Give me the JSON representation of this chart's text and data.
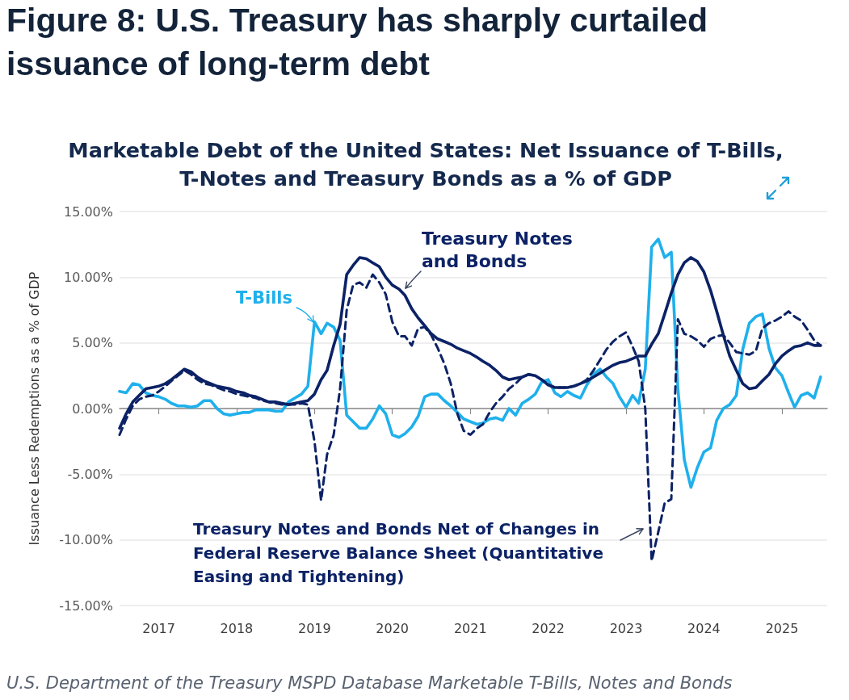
{
  "chart_data": {
    "type": "line",
    "title": "Figure 8: U.S. Treasury has sharply curtailed issuance of long-term debt",
    "subtitle": "Marketable Debt of the United States: Net Issuance of T-Bills, T-Notes and Treasury Bonds as a % of GDP",
    "ylabel": "Issuance Less Redemptions as a % of GDP",
    "annotations": [
      "U.S. Department of the Treasury MSPD Database Marketable T-Bills, Notes and Bonds"
    ],
    "x": [
      "2016-07",
      "2016-08",
      "2016-09",
      "2016-10",
      "2016-11",
      "2016-12",
      "2017-01",
      "2017-02",
      "2017-03",
      "2017-04",
      "2017-05",
      "2017-06",
      "2017-07",
      "2017-08",
      "2017-09",
      "2017-10",
      "2017-11",
      "2017-12",
      "2018-01",
      "2018-02",
      "2018-03",
      "2018-04",
      "2018-05",
      "2018-06",
      "2018-07",
      "2018-08",
      "2018-09",
      "2018-10",
      "2018-11",
      "2018-12",
      "2019-01",
      "2019-02",
      "2019-03",
      "2019-04",
      "2019-05",
      "2019-06",
      "2019-07",
      "2019-08",
      "2019-09",
      "2019-10",
      "2019-11",
      "2019-12",
      "2020-01",
      "2020-02",
      "2020-03",
      "2020-04",
      "2020-05",
      "2020-06",
      "2020-07",
      "2020-08",
      "2020-09",
      "2020-10",
      "2020-11",
      "2020-12",
      "2021-01",
      "2021-02",
      "2021-03",
      "2021-04",
      "2021-05",
      "2021-06",
      "2021-07",
      "2021-08",
      "2021-09",
      "2021-10",
      "2021-11",
      "2021-12",
      "2022-01",
      "2022-02",
      "2022-03",
      "2022-04",
      "2022-05",
      "2022-06",
      "2022-07",
      "2022-08",
      "2022-09",
      "2022-10",
      "2022-11",
      "2022-12",
      "2023-01",
      "2023-02",
      "2023-03",
      "2023-04",
      "2023-05",
      "2023-06",
      "2023-07",
      "2023-08",
      "2023-09",
      "2023-10",
      "2023-11",
      "2023-12",
      "2024-01",
      "2024-02",
      "2024-03",
      "2024-04",
      "2024-05",
      "2024-06",
      "2024-07",
      "2024-08",
      "2024-09",
      "2024-10",
      "2024-11",
      "2024-12",
      "2025-01",
      "2025-02",
      "2025-03",
      "2025-04",
      "2025-05",
      "2025-06",
      "2025-07"
    ],
    "series": [
      {
        "name": "T-Bills",
        "color": "#1fb0ec",
        "line_style": "solid",
        "values": [
          1.3,
          1.2,
          1.9,
          1.8,
          1.2,
          1.0,
          0.9,
          0.7,
          0.4,
          0.2,
          0.2,
          0.1,
          0.2,
          0.6,
          0.6,
          0.0,
          -0.4,
          -0.5,
          -0.4,
          -0.3,
          -0.3,
          -0.1,
          -0.1,
          -0.1,
          -0.2,
          -0.2,
          0.5,
          0.8,
          1.1,
          1.7,
          6.6,
          5.7,
          6.5,
          6.2,
          5.2,
          -0.5,
          -1.0,
          -1.5,
          -1.5,
          -0.8,
          0.2,
          -0.4,
          -2.0,
          -2.2,
          -1.9,
          -1.4,
          -0.6,
          0.9,
          1.1,
          1.1,
          0.6,
          0.2,
          -0.3,
          -0.8,
          -1.0,
          -1.2,
          -1.1,
          -0.8,
          -0.7,
          -0.9,
          0.0,
          -0.5,
          0.4,
          0.7,
          1.1,
          2.0,
          2.2,
          1.2,
          0.9,
          1.3,
          1.0,
          0.8,
          1.8,
          2.6,
          3.0,
          2.4,
          1.9,
          0.9,
          0.1,
          1.0,
          0.4,
          3.0,
          12.3,
          12.9,
          11.5,
          11.9,
          1.5,
          -3.9,
          -6.0,
          -4.5,
          -3.3,
          -3.0,
          -0.9,
          0.0,
          0.3,
          1.0,
          4.5,
          6.5,
          7.0,
          7.2,
          4.6,
          3.1,
          2.5,
          1.2,
          0.1,
          1.0,
          1.2,
          0.8,
          2.4
        ]
      },
      {
        "name": "Treasury Notes and Bonds",
        "color": "#0c2266",
        "line_style": "solid",
        "values": [
          -1.5,
          -0.4,
          0.5,
          1.0,
          1.5,
          1.6,
          1.7,
          1.9,
          2.2,
          2.6,
          3.0,
          2.8,
          2.4,
          2.1,
          1.9,
          1.7,
          1.6,
          1.5,
          1.3,
          1.2,
          1.0,
          0.9,
          0.7,
          0.5,
          0.5,
          0.4,
          0.3,
          0.4,
          0.5,
          0.6,
          1.1,
          2.2,
          2.9,
          4.8,
          6.4,
          10.2,
          10.9,
          11.5,
          11.4,
          11.1,
          10.8,
          10.0,
          9.4,
          9.1,
          8.6,
          7.6,
          6.9,
          6.3,
          5.7,
          5.3,
          5.1,
          4.9,
          4.6,
          4.4,
          4.2,
          3.9,
          3.6,
          3.3,
          2.9,
          2.4,
          2.2,
          2.3,
          2.4,
          2.6,
          2.5,
          2.2,
          1.8,
          1.6,
          1.6,
          1.6,
          1.7,
          1.9,
          2.1,
          2.4,
          2.7,
          3.0,
          3.3,
          3.5,
          3.6,
          3.8,
          4.0,
          4.0,
          4.9,
          5.7,
          7.2,
          8.8,
          10.2,
          11.1,
          11.5,
          11.2,
          10.4,
          9.0,
          7.4,
          5.6,
          4.0,
          2.9,
          1.9,
          1.5,
          1.6,
          2.1,
          2.6,
          3.4,
          4.0,
          4.4,
          4.7,
          4.8,
          5.0,
          4.8,
          4.8
        ]
      },
      {
        "name": "Treasury Notes and Bonds Net of Changes in Federal Reserve Balance Sheet (Quantitative Easing and Tightening)",
        "color": "#0c2266",
        "line_style": "dashed",
        "values": [
          -2.0,
          -0.8,
          0.2,
          0.7,
          0.9,
          1.0,
          1.3,
          1.7,
          2.1,
          2.5,
          2.9,
          2.6,
          2.2,
          1.9,
          1.8,
          1.6,
          1.4,
          1.3,
          1.1,
          1.0,
          0.9,
          0.8,
          0.6,
          0.5,
          0.4,
          0.3,
          0.3,
          0.3,
          0.4,
          0.3,
          -2.5,
          -7.0,
          -3.5,
          -2.0,
          1.5,
          7.5,
          9.4,
          9.6,
          9.2,
          10.2,
          9.6,
          8.7,
          6.6,
          5.5,
          5.5,
          4.8,
          6.1,
          6.2,
          5.6,
          4.6,
          3.4,
          1.9,
          -0.4,
          -1.7,
          -2.0,
          -1.5,
          -1.2,
          -0.3,
          0.4,
          0.9,
          1.5,
          1.9,
          2.4,
          2.6,
          2.5,
          2.2,
          1.8,
          1.6,
          1.6,
          1.6,
          1.7,
          1.9,
          2.2,
          2.9,
          3.7,
          4.5,
          5.1,
          5.5,
          5.8,
          4.7,
          3.6,
          0.0,
          -11.6,
          -9.4,
          -7.2,
          -6.9,
          6.8,
          5.7,
          5.5,
          5.2,
          4.7,
          5.3,
          5.5,
          5.6,
          5.0,
          4.3,
          4.2,
          4.1,
          4.4,
          6.1,
          6.5,
          6.7,
          7.0,
          7.4,
          7.0,
          6.7,
          6.0,
          5.2,
          4.8
        ]
      }
    ],
    "xlim": [
      "2016-07",
      "2025-08"
    ],
    "xticks": [
      "2017",
      "2018",
      "2019",
      "2020",
      "2021",
      "2022",
      "2023",
      "2024",
      "2025"
    ],
    "ylim": [
      -15,
      15
    ],
    "yticks": [
      {
        "value": 15,
        "label": "15.00%"
      },
      {
        "value": 10,
        "label": "10.00%"
      },
      {
        "value": 5,
        "label": "5.00%"
      },
      {
        "value": 0,
        "label": "0.00%"
      },
      {
        "value": -5,
        "label": "-5.00%"
      },
      {
        "value": -10,
        "label": "-10.00%"
      },
      {
        "value": -15,
        "label": "-15.00%"
      }
    ],
    "grid": "y",
    "marker": "none"
  }
}
